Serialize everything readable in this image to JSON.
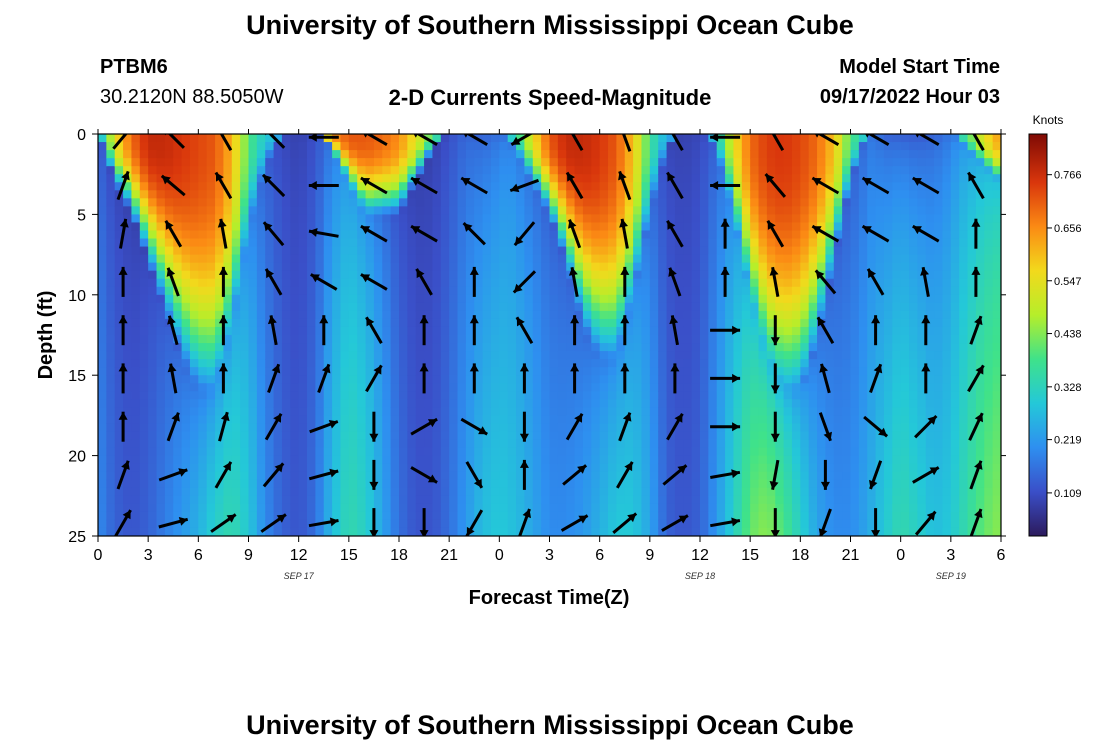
{
  "header": {
    "title": "University of Southern Mississippi Ocean Cube",
    "station": "PTBM6",
    "coords": "30.2120N  88.5050W",
    "subtitle": "2-D Currents Speed-Magnitude",
    "model_label": "Model Start Time",
    "model_time": "09/17/2022 Hour 03"
  },
  "footer": {
    "title": "University of Southern Mississippi Ocean Cube"
  },
  "colors": {
    "background": "#ffffff",
    "arrow": "#000000",
    "colormap": [
      "#2c1a5c",
      "#3a4fc8",
      "#2e8ff0",
      "#24c8d8",
      "#3fe28a",
      "#b6ee2a",
      "#f2d91c",
      "#fb8a14",
      "#d9360c",
      "#7f0a04"
    ]
  },
  "chart_data": {
    "type": "heatmap",
    "title": "2-D Currents Speed-Magnitude",
    "xlabel": "Forecast Time(Z)",
    "ylabel": "Depth (ft)",
    "x_range_hours": [
      0,
      54
    ],
    "y_range_ft": [
      0,
      25
    ],
    "x_ticks": [
      "0",
      "3",
      "6",
      "9",
      "12",
      "15",
      "18",
      "21",
      "0",
      "3",
      "6",
      "9",
      "12",
      "15",
      "18",
      "21",
      "0",
      "3",
      "6"
    ],
    "y_ticks": [
      "0",
      "5",
      "10",
      "15",
      "20",
      "25"
    ],
    "day_labels": [
      {
        "text": "SEP 17",
        "hour": 12
      },
      {
        "text": "SEP 18",
        "hour": 36
      },
      {
        "text": "SEP 19",
        "hour": 51
      }
    ],
    "colorbar": {
      "unit": "Knots",
      "range": [
        0.02,
        0.85
      ],
      "tick_values": [
        0.766,
        0.656,
        0.547,
        0.438,
        0.328,
        0.219,
        0.109
      ],
      "tick_labels": [
        "0.766",
        "0.656",
        "0.547",
        "0.438",
        "0.328",
        "0.219",
        "0.109"
      ]
    },
    "speed_profile": {
      "hours": [
        0,
        1,
        2,
        3,
        4,
        5,
        6,
        7,
        8,
        9,
        10,
        11,
        12,
        13,
        14,
        15,
        16,
        17,
        18,
        19,
        20,
        21,
        22,
        23,
        24,
        25,
        26,
        27,
        28,
        29,
        30,
        31,
        32,
        33,
        34,
        35,
        36,
        37,
        38,
        39,
        40,
        41,
        42,
        43,
        44,
        45,
        46,
        47,
        48,
        49,
        50,
        51,
        52,
        53,
        54
      ],
      "surface_knots": [
        0.25,
        0.55,
        0.7,
        0.78,
        0.78,
        0.76,
        0.74,
        0.72,
        0.62,
        0.4,
        0.3,
        0.26,
        0.3,
        0.45,
        0.65,
        0.72,
        0.72,
        0.7,
        0.66,
        0.55,
        0.4,
        0.28,
        0.22,
        0.2,
        0.24,
        0.35,
        0.55,
        0.72,
        0.78,
        0.78,
        0.76,
        0.72,
        0.6,
        0.38,
        0.25,
        0.22,
        0.2,
        0.3,
        0.55,
        0.7,
        0.75,
        0.76,
        0.74,
        0.7,
        0.6,
        0.4,
        0.3,
        0.2,
        0.18,
        0.17,
        0.2,
        0.26,
        0.4,
        0.55,
        0.65
      ],
      "min_depth_ft": [
        0,
        3,
        5,
        8,
        11,
        14,
        16,
        16,
        12,
        6,
        2,
        0,
        0,
        0,
        1,
        3,
        5,
        5,
        5,
        3,
        1,
        0,
        0,
        0,
        0,
        1,
        3,
        5,
        8,
        12,
        14,
        14,
        10,
        5,
        1,
        0,
        0,
        1,
        5,
        10,
        14,
        16,
        16,
        13,
        8,
        3,
        0,
        0,
        0,
        0,
        0,
        0,
        1,
        2,
        3
      ],
      "bottom_knots": [
        0.2,
        0.14,
        0.12,
        0.14,
        0.18,
        0.22,
        0.26,
        0.32,
        0.35,
        0.3,
        0.2,
        0.14,
        0.12,
        0.16,
        0.28,
        0.35,
        0.32,
        0.24,
        0.16,
        0.12,
        0.12,
        0.16,
        0.22,
        0.28,
        0.3,
        0.28,
        0.24,
        0.2,
        0.2,
        0.22,
        0.26,
        0.3,
        0.3,
        0.24,
        0.14,
        0.12,
        0.14,
        0.22,
        0.32,
        0.42,
        0.45,
        0.4,
        0.32,
        0.24,
        0.2,
        0.2,
        0.24,
        0.3,
        0.35,
        0.32,
        0.28,
        0.3,
        0.36,
        0.42,
        0.45
      ]
    },
    "vectors_note": "current direction arrows (degrees, 0 = north/up, clockwise)",
    "vector_columns_hours": [
      0,
      3,
      6,
      9,
      12,
      15,
      18,
      21,
      24,
      27,
      30,
      33,
      36,
      39,
      42,
      45,
      48,
      51
    ],
    "vector_rows_ft": [
      0,
      3,
      6,
      9,
      12,
      15,
      18,
      21,
      24
    ],
    "vector_directions_deg": [
      [
        40,
        315,
        330,
        315,
        270,
        300,
        300,
        300,
        240,
        330,
        340,
        330,
        270,
        330,
        300,
        300,
        300,
        330
      ],
      [
        20,
        310,
        330,
        315,
        270,
        300,
        300,
        300,
        250,
        330,
        340,
        330,
        270,
        320,
        300,
        300,
        300,
        330
      ],
      [
        10,
        330,
        350,
        320,
        280,
        300,
        300,
        315,
        220,
        340,
        350,
        330,
        0,
        330,
        300,
        300,
        300,
        0
      ],
      [
        0,
        340,
        0,
        330,
        300,
        300,
        330,
        0,
        225,
        350,
        0,
        340,
        0,
        350,
        320,
        330,
        350,
        0
      ],
      [
        0,
        345,
        0,
        350,
        0,
        330,
        0,
        0,
        330,
        0,
        0,
        350,
        90,
        180,
        330,
        0,
        0,
        20
      ],
      [
        0,
        350,
        0,
        20,
        20,
        30,
        0,
        0,
        0,
        0,
        0,
        0,
        90,
        180,
        345,
        20,
        0,
        30
      ],
      [
        0,
        20,
        15,
        30,
        70,
        180,
        60,
        120,
        180,
        30,
        20,
        30,
        90,
        180,
        160,
        130,
        45,
        25
      ],
      [
        20,
        70,
        30,
        40,
        75,
        180,
        120,
        150,
        0,
        50,
        30,
        50,
        80,
        190,
        180,
        200,
        60,
        20
      ],
      [
        30,
        75,
        55,
        55,
        80,
        180,
        180,
        210,
        20,
        60,
        50,
        60,
        80,
        180,
        200,
        180,
        40,
        20
      ]
    ]
  }
}
